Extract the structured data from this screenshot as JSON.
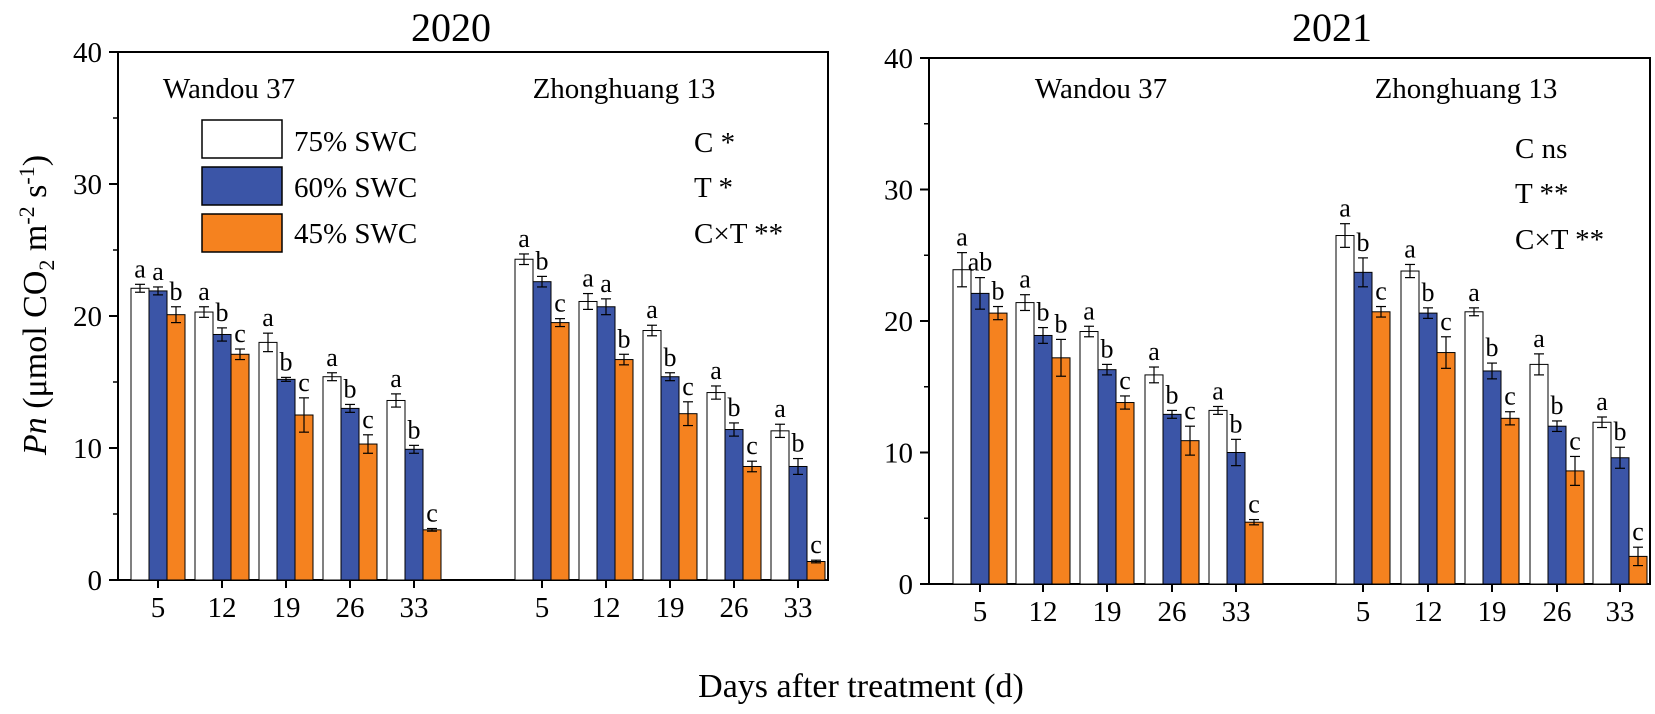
{
  "figure": {
    "xlabel": "Days after treatment (d)",
    "ylabel": {
      "prefix": "Pn",
      "p1": " (μmol CO",
      "sub1": "2",
      "p2": " m",
      "sup1": "-2",
      "p3": " s",
      "sup2": "-1",
      "p4": ")"
    },
    "legend": [
      "75% SWC",
      "60% SWC",
      "45% SWC"
    ],
    "colors": {
      "75% SWC": "#ffffff",
      "60% SWC": "#3b55a7",
      "45% SWC": "#f5821f"
    }
  },
  "chart_data": [
    {
      "type": "bar",
      "title": "2020",
      "ylim": [
        0,
        40
      ],
      "yticks": [
        "0",
        "10",
        "20",
        "30",
        "40"
      ],
      "categories": [
        "5",
        "12",
        "19",
        "26",
        "33"
      ],
      "groups": [
        {
          "name": "Wandou 37",
          "series": [
            {
              "name": "75% SWC",
              "values": [
                22.1,
                20.3,
                18.0,
                15.4,
                13.6
              ],
              "errors": [
                0.3,
                0.4,
                0.7,
                0.3,
                0.5
              ],
              "letters": [
                "a",
                "a",
                "a",
                "a",
                "a"
              ]
            },
            {
              "name": "60% SWC",
              "values": [
                21.9,
                18.6,
                15.2,
                13.0,
                9.9
              ],
              "errors": [
                0.3,
                0.5,
                0.15,
                0.3,
                0.3
              ],
              "letters": [
                "a",
                "b",
                "b",
                "b",
                "b"
              ]
            },
            {
              "name": "45% SWC",
              "values": [
                20.1,
                17.1,
                12.5,
                10.3,
                3.8
              ],
              "errors": [
                0.6,
                0.4,
                1.3,
                0.7,
                0.1
              ],
              "letters": [
                "b",
                "c",
                "c",
                "c",
                "c"
              ]
            }
          ]
        },
        {
          "name": "Zhonghuang 13",
          "series": [
            {
              "name": "75% SWC",
              "values": [
                24.3,
                21.1,
                18.9,
                14.2,
                11.3
              ],
              "errors": [
                0.4,
                0.6,
                0.4,
                0.5,
                0.5
              ],
              "letters": [
                "a",
                "a",
                "a",
                "a",
                "a"
              ]
            },
            {
              "name": "60% SWC",
              "values": [
                22.6,
                20.7,
                15.4,
                11.4,
                8.6
              ],
              "errors": [
                0.4,
                0.6,
                0.3,
                0.5,
                0.6
              ],
              "letters": [
                "b",
                "a",
                "b",
                "b",
                "b"
              ]
            },
            {
              "name": "45% SWC",
              "values": [
                19.5,
                16.7,
                12.6,
                8.6,
                1.4
              ],
              "errors": [
                0.3,
                0.4,
                0.9,
                0.4,
                0.1
              ],
              "letters": [
                "c",
                "b",
                "c",
                "c",
                "c"
              ]
            }
          ]
        }
      ],
      "stats": [
        "C *",
        "T *",
        "C×T **"
      ]
    },
    {
      "type": "bar",
      "title": "2021",
      "ylim": [
        0,
        40
      ],
      "yticks": [
        "0",
        "10",
        "20",
        "30",
        "40"
      ],
      "categories": [
        "5",
        "12",
        "19",
        "26",
        "33"
      ],
      "groups": [
        {
          "name": "Wandou 37",
          "series": [
            {
              "name": "75% SWC",
              "values": [
                23.9,
                21.4,
                19.2,
                15.9,
                13.2
              ],
              "errors": [
                1.3,
                0.6,
                0.4,
                0.6,
                0.3
              ],
              "letters": [
                "a",
                "a",
                "a",
                "a",
                "a"
              ]
            },
            {
              "name": "60% SWC",
              "values": [
                22.1,
                18.9,
                16.3,
                12.9,
                10.0
              ],
              "errors": [
                1.2,
                0.6,
                0.4,
                0.3,
                1.0
              ],
              "letters": [
                "ab",
                "b",
                "b",
                "b",
                "b"
              ]
            },
            {
              "name": "45% SWC",
              "values": [
                20.6,
                17.2,
                13.8,
                10.9,
                4.7
              ],
              "errors": [
                0.5,
                1.4,
                0.5,
                1.1,
                0.2
              ],
              "letters": [
                "b",
                "b",
                "c",
                "c",
                "c"
              ]
            }
          ]
        },
        {
          "name": "Zhonghuang 13",
          "series": [
            {
              "name": "75% SWC",
              "values": [
                26.5,
                23.8,
                20.7,
                16.7,
                12.3
              ],
              "errors": [
                0.9,
                0.5,
                0.3,
                0.8,
                0.4
              ],
              "letters": [
                "a",
                "a",
                "a",
                "a",
                "a"
              ]
            },
            {
              "name": "60% SWC",
              "values": [
                23.7,
                20.6,
                16.2,
                12.0,
                9.6
              ],
              "errors": [
                1.1,
                0.4,
                0.6,
                0.4,
                0.8
              ],
              "letters": [
                "b",
                "b",
                "b",
                "b",
                "b"
              ]
            },
            {
              "name": "45% SWC",
              "values": [
                20.7,
                17.6,
                12.6,
                8.6,
                2.1
              ],
              "errors": [
                0.4,
                1.2,
                0.5,
                1.1,
                0.7
              ],
              "letters": [
                "c",
                "c",
                "c",
                "c",
                "c"
              ]
            }
          ]
        }
      ],
      "stats": [
        "C ns",
        "T **",
        "C×T **"
      ]
    }
  ]
}
